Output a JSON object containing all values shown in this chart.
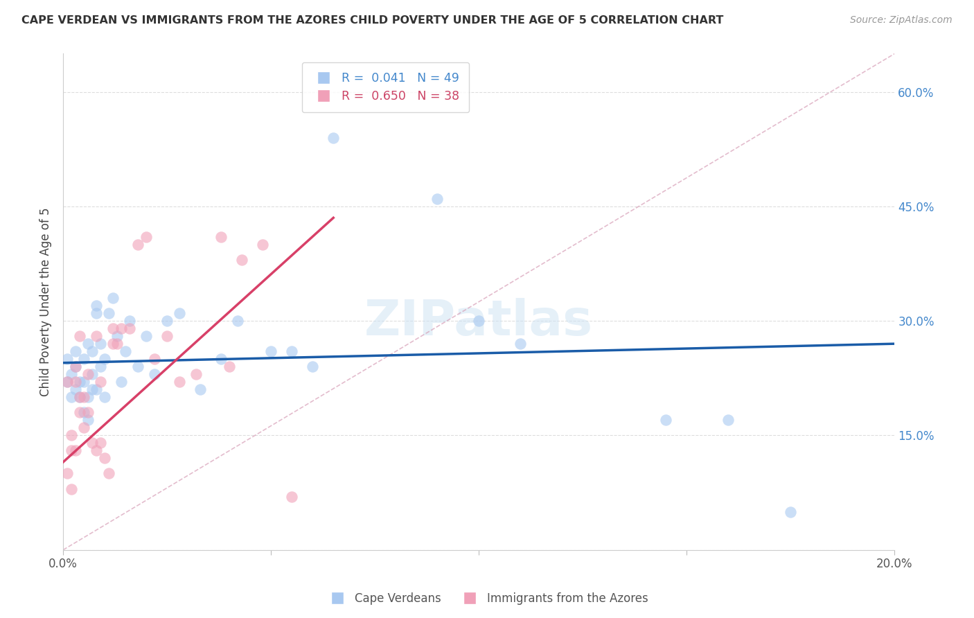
{
  "title": "CAPE VERDEAN VS IMMIGRANTS FROM THE AZORES CHILD POVERTY UNDER THE AGE OF 5 CORRELATION CHART",
  "source": "Source: ZipAtlas.com",
  "ylabel": "Child Poverty Under the Age of 5",
  "xlim": [
    0.0,
    0.2
  ],
  "ylim": [
    0.0,
    0.65
  ],
  "xticks": [
    0.0,
    0.05,
    0.1,
    0.15,
    0.2
  ],
  "yticks": [
    0.0,
    0.15,
    0.3,
    0.45,
    0.6
  ],
  "legend_labels": [
    "Cape Verdeans",
    "Immigrants from the Azores"
  ],
  "blue_R": "0.041",
  "blue_N": "49",
  "pink_R": "0.650",
  "pink_N": "38",
  "blue_color": "#A8C8F0",
  "pink_color": "#F0A0B8",
  "blue_line_color": "#1A5CA8",
  "pink_line_color": "#D84068",
  "diag_line_color": "#D8A0B8",
  "watermark_color": "#D0E4F4",
  "blue_line_x": [
    0.0,
    0.2
  ],
  "blue_line_y": [
    0.245,
    0.27
  ],
  "pink_line_x": [
    0.0,
    0.065
  ],
  "pink_line_y": [
    0.115,
    0.435
  ],
  "diag_line_x": [
    0.0,
    0.2
  ],
  "diag_line_y": [
    0.0,
    0.65
  ],
  "blue_x": [
    0.001,
    0.001,
    0.002,
    0.002,
    0.003,
    0.003,
    0.003,
    0.004,
    0.004,
    0.005,
    0.005,
    0.005,
    0.006,
    0.006,
    0.006,
    0.007,
    0.007,
    0.007,
    0.008,
    0.008,
    0.008,
    0.009,
    0.009,
    0.01,
    0.01,
    0.011,
    0.012,
    0.013,
    0.014,
    0.015,
    0.016,
    0.018,
    0.02,
    0.022,
    0.025,
    0.028,
    0.033,
    0.038,
    0.042,
    0.05,
    0.055,
    0.06,
    0.065,
    0.09,
    0.1,
    0.11,
    0.145,
    0.16,
    0.175
  ],
  "blue_y": [
    0.22,
    0.25,
    0.2,
    0.23,
    0.21,
    0.24,
    0.26,
    0.2,
    0.22,
    0.18,
    0.22,
    0.25,
    0.17,
    0.2,
    0.27,
    0.23,
    0.26,
    0.21,
    0.21,
    0.31,
    0.32,
    0.24,
    0.27,
    0.25,
    0.2,
    0.31,
    0.33,
    0.28,
    0.22,
    0.26,
    0.3,
    0.24,
    0.28,
    0.23,
    0.3,
    0.31,
    0.21,
    0.25,
    0.3,
    0.26,
    0.26,
    0.24,
    0.54,
    0.46,
    0.3,
    0.27,
    0.17,
    0.17,
    0.05
  ],
  "pink_x": [
    0.001,
    0.001,
    0.002,
    0.002,
    0.002,
    0.003,
    0.003,
    0.003,
    0.004,
    0.004,
    0.004,
    0.005,
    0.005,
    0.006,
    0.006,
    0.007,
    0.008,
    0.008,
    0.009,
    0.009,
    0.01,
    0.011,
    0.012,
    0.012,
    0.013,
    0.014,
    0.016,
    0.018,
    0.02,
    0.022,
    0.025,
    0.028,
    0.032,
    0.038,
    0.04,
    0.043,
    0.048,
    0.055
  ],
  "pink_y": [
    0.1,
    0.22,
    0.08,
    0.13,
    0.15,
    0.13,
    0.22,
    0.24,
    0.18,
    0.2,
    0.28,
    0.16,
    0.2,
    0.18,
    0.23,
    0.14,
    0.13,
    0.28,
    0.14,
    0.22,
    0.12,
    0.1,
    0.29,
    0.27,
    0.27,
    0.29,
    0.29,
    0.4,
    0.41,
    0.25,
    0.28,
    0.22,
    0.23,
    0.41,
    0.24,
    0.38,
    0.4,
    0.07
  ]
}
